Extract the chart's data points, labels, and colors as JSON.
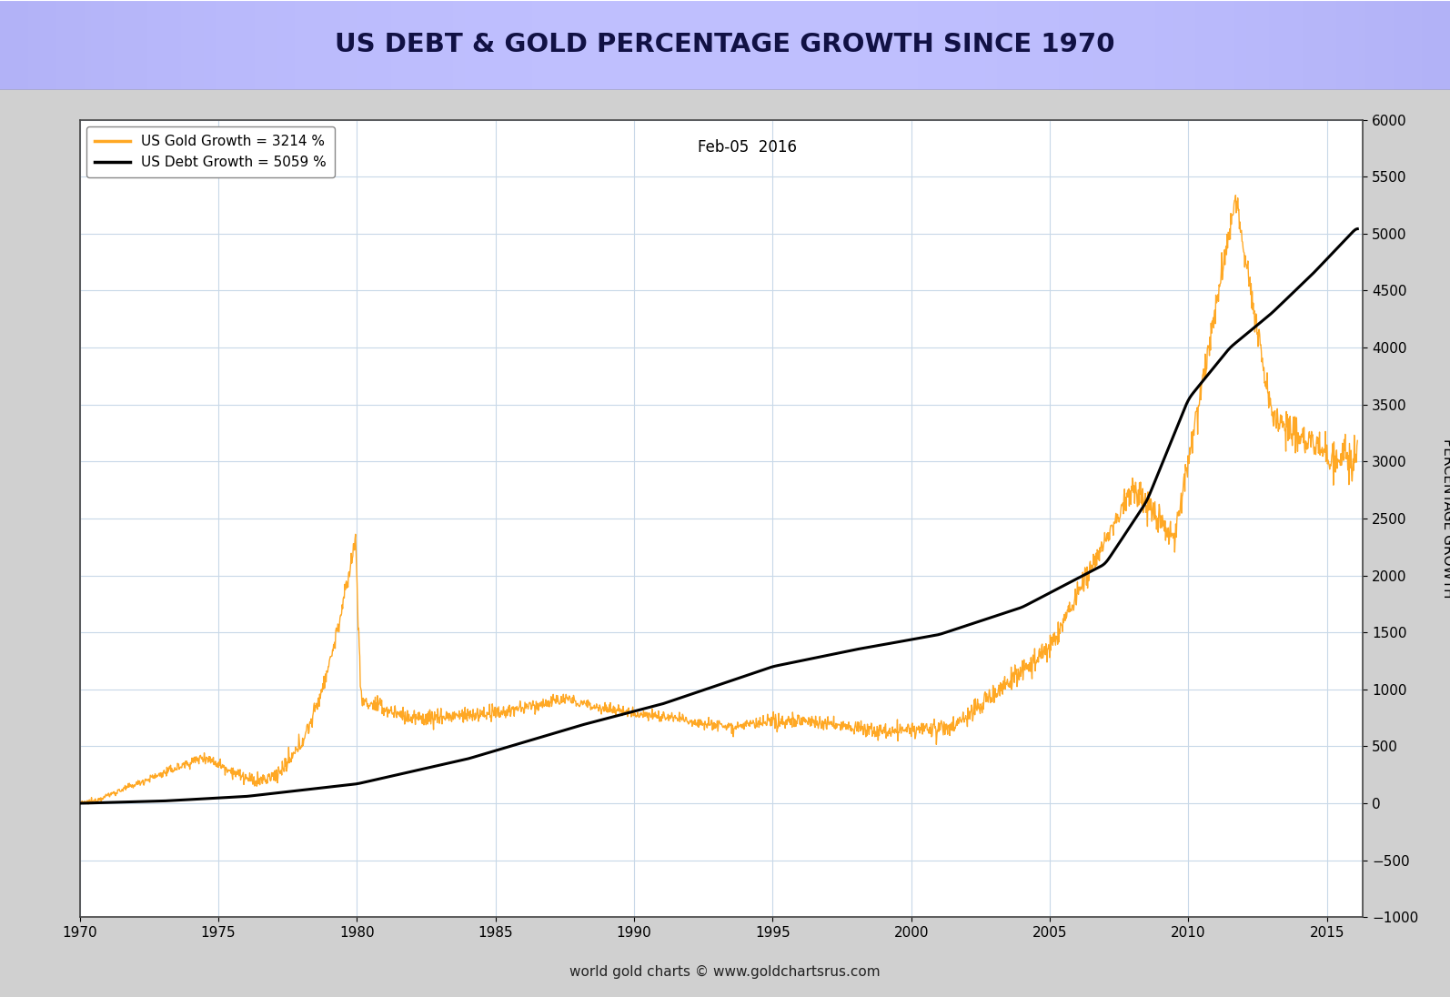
{
  "title": "US DEBT & GOLD PERCENTAGE GROWTH SINCE 1970",
  "date_label": "Feb-05  2016",
  "legend_gold": "US Gold Growth = 3214 %",
  "legend_debt": "US Debt Growth = 5059 %",
  "ylabel_right": "PERCENTAGE GROWTH",
  "footer": "world gold charts © www.goldchartsrus.com",
  "gold_color": "#FFA824",
  "debt_color": "#000000",
  "ylim": [
    -1000,
    6000
  ],
  "yticks": [
    -1000,
    -500,
    0,
    500,
    1000,
    1500,
    2000,
    2500,
    3000,
    3500,
    4000,
    4500,
    5000,
    5500,
    6000
  ],
  "xlim_start": 1970,
  "xlim_end": 2016.3,
  "xticks": [
    1970,
    1975,
    1980,
    1985,
    1990,
    1995,
    2000,
    2005,
    2010,
    2015
  ],
  "plot_bg_color": "#ffffff",
  "grid_color": "#c8d8e8",
  "title_color_left": "#9090e0",
  "title_color_right": "#b0b0f8",
  "outer_bg": "#d0d0d0"
}
